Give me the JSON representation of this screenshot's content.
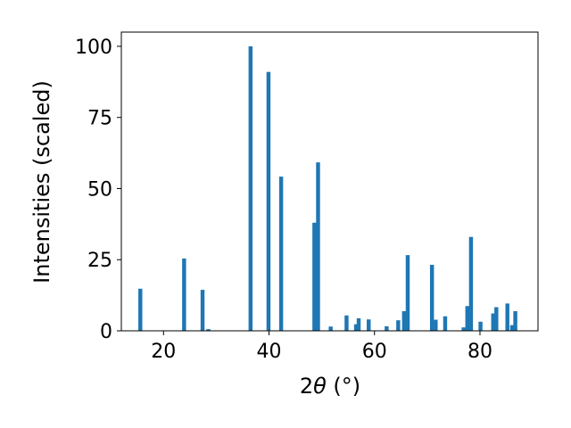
{
  "chart_data": {
    "type": "bar",
    "xlabel_main": "2",
    "xlabel_theta": "θ",
    "xlabel_unit": " (°)",
    "ylabel": "Intensities (scaled)",
    "xlim": [
      12,
      91
    ],
    "ylim": [
      0,
      105
    ],
    "xticks": [
      20,
      40,
      60,
      80
    ],
    "yticks": [
      0,
      25,
      50,
      75,
      100
    ],
    "bar_width": 0.75,
    "color": "#1f77b4",
    "grid": false,
    "points": [
      {
        "x": 15.6,
        "y": 14.8
      },
      {
        "x": 23.9,
        "y": 25.4
      },
      {
        "x": 27.4,
        "y": 14.4
      },
      {
        "x": 28.5,
        "y": 0.6
      },
      {
        "x": 36.5,
        "y": 100
      },
      {
        "x": 39.9,
        "y": 91
      },
      {
        "x": 42.3,
        "y": 54.2
      },
      {
        "x": 48.6,
        "y": 38
      },
      {
        "x": 49.3,
        "y": 59.2
      },
      {
        "x": 51.7,
        "y": 1.5
      },
      {
        "x": 54.7,
        "y": 5.4
      },
      {
        "x": 56.5,
        "y": 2.3
      },
      {
        "x": 57.0,
        "y": 4.4
      },
      {
        "x": 58.9,
        "y": 4.0
      },
      {
        "x": 62.3,
        "y": 1.6
      },
      {
        "x": 64.5,
        "y": 3.7
      },
      {
        "x": 65.6,
        "y": 6.9
      },
      {
        "x": 66.3,
        "y": 26.6
      },
      {
        "x": 70.9,
        "y": 23.2
      },
      {
        "x": 71.6,
        "y": 3.9
      },
      {
        "x": 73.4,
        "y": 5.1
      },
      {
        "x": 76.9,
        "y": 1.2
      },
      {
        "x": 77.6,
        "y": 8.7
      },
      {
        "x": 78.3,
        "y": 33
      },
      {
        "x": 80.1,
        "y": 3.2
      },
      {
        "x": 82.5,
        "y": 6.1
      },
      {
        "x": 83.1,
        "y": 8.3
      },
      {
        "x": 85.2,
        "y": 9.6
      },
      {
        "x": 86.1,
        "y": 2.0
      },
      {
        "x": 86.7,
        "y": 6.9
      }
    ]
  }
}
